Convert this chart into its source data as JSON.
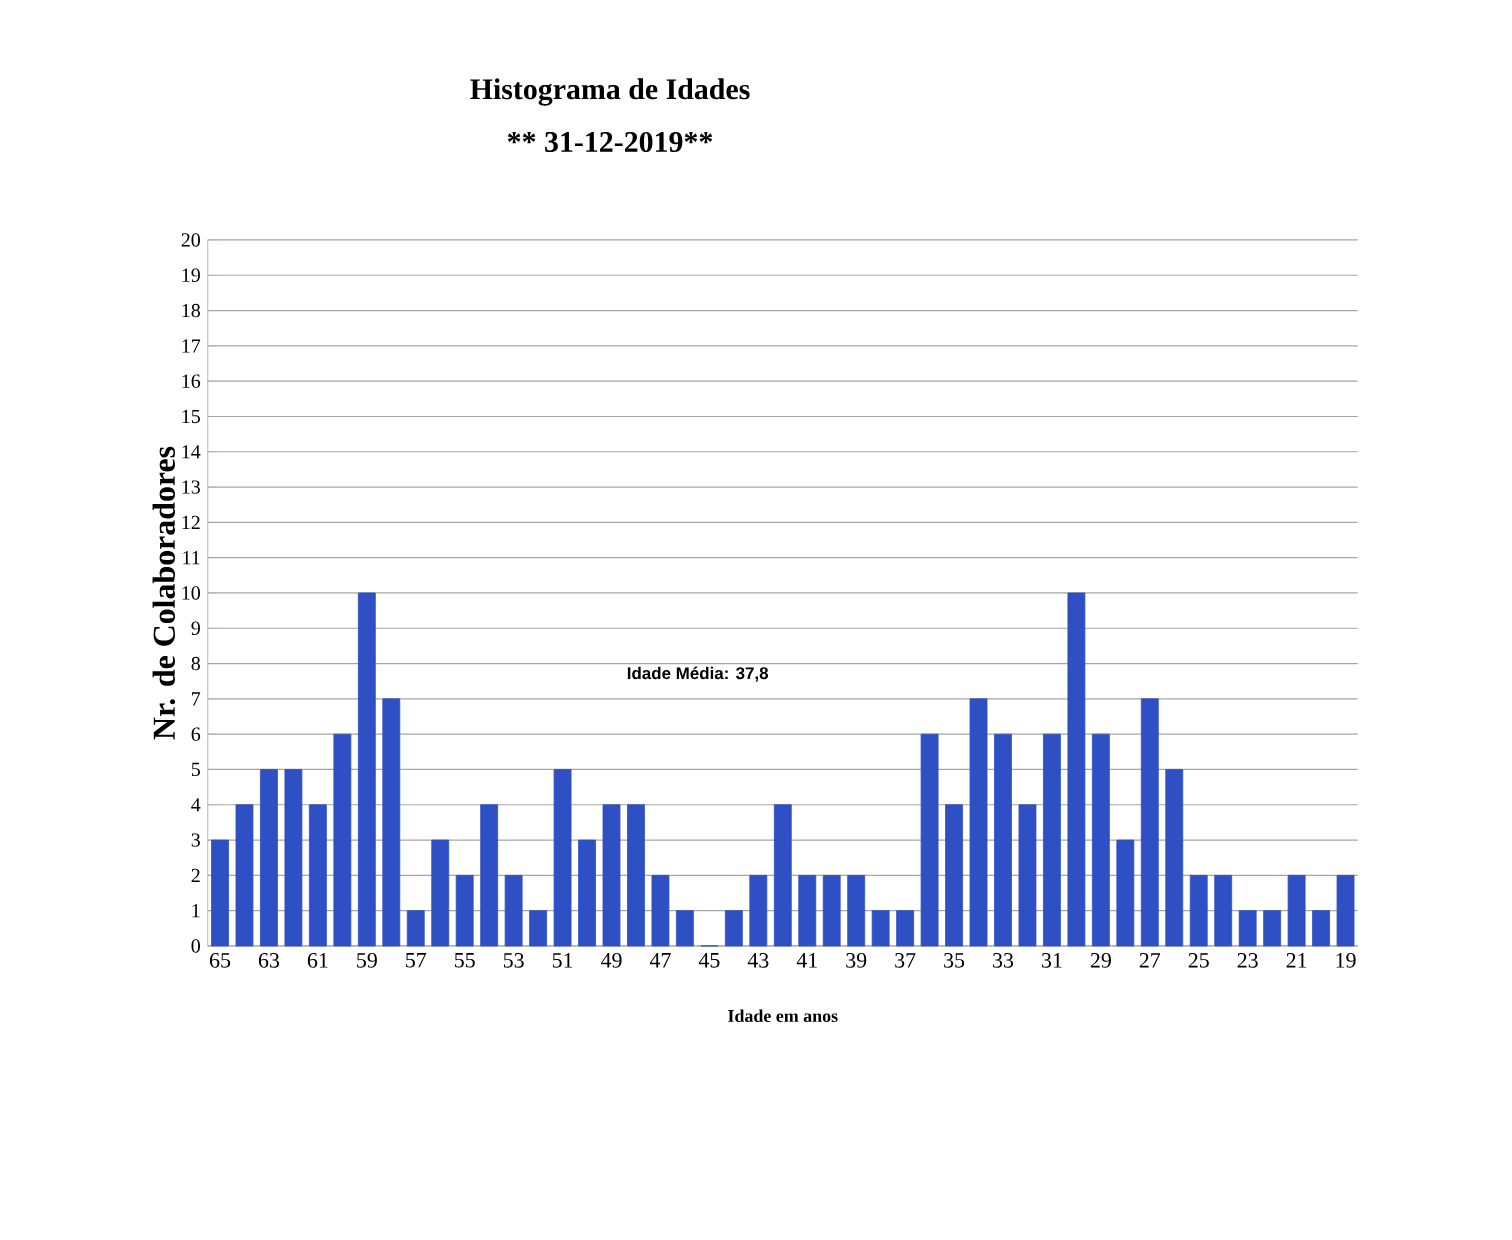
{
  "chart_data": {
    "type": "bar",
    "title": "Histograma de Idades",
    "subtitle": "** 31-12-2019**",
    "xlabel": "Idade  em anos",
    "ylabel": "Nr. de Colaboradores",
    "categories": [
      "65",
      null,
      "63",
      null,
      "61",
      null,
      "59",
      null,
      "57",
      null,
      "55",
      null,
      "53",
      null,
      "51",
      null,
      "49",
      null,
      "47",
      null,
      "45",
      null,
      "43",
      null,
      "41",
      null,
      "39",
      null,
      "37",
      null,
      "35",
      null,
      "33",
      null,
      "31",
      null,
      "29",
      null,
      "27",
      null,
      "25",
      null,
      "23",
      null,
      "21",
      null,
      "19"
    ],
    "values": [
      3,
      4,
      5,
      5,
      4,
      6,
      10,
      7,
      1,
      3,
      2,
      4,
      2,
      1,
      5,
      3,
      4,
      4,
      2,
      1,
      0,
      1,
      2,
      4,
      2,
      2,
      2,
      1,
      1,
      6,
      4,
      7,
      6,
      4,
      6,
      10,
      6,
      3,
      7,
      5,
      2,
      2,
      1,
      1,
      2,
      1,
      2
    ],
    "color": "#2f4fc4",
    "ylim": [
      0,
      20
    ],
    "yticks": [
      0,
      1,
      2,
      3,
      4,
      5,
      6,
      7,
      8,
      9,
      10,
      11,
      12,
      13,
      14,
      15,
      16,
      17,
      18,
      19,
      20
    ],
    "grid": "y",
    "annotations": [
      "Idade Média: 37,8"
    ]
  }
}
